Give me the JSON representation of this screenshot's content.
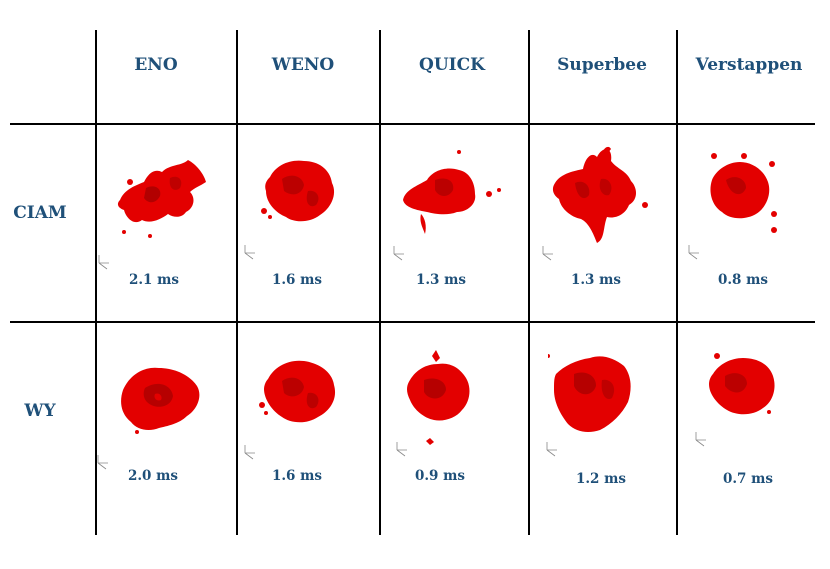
{
  "table": {
    "columns": [
      "ENO",
      "WENO",
      "QUICK",
      "Superbee",
      "Verstappen"
    ],
    "rows": [
      {
        "label": "CIAM",
        "times": [
          "2.1 ms",
          "1.6 ms",
          "1.3 ms",
          "1.3 ms",
          "0.8 ms"
        ]
      },
      {
        "label": "WY",
        "times": [
          "2.0 ms",
          "1.6 ms",
          "0.9 ms",
          "1.2 ms",
          "0.7 ms"
        ]
      }
    ]
  },
  "colors": {
    "header_text": "#1f5079",
    "blob_fill": "#e30000",
    "blob_shade": "#8a0000",
    "grid_line": "#000000"
  },
  "icons": {
    "blob": "droplet-isosurface-render",
    "axis": "xyz-axis-triad-icon"
  }
}
